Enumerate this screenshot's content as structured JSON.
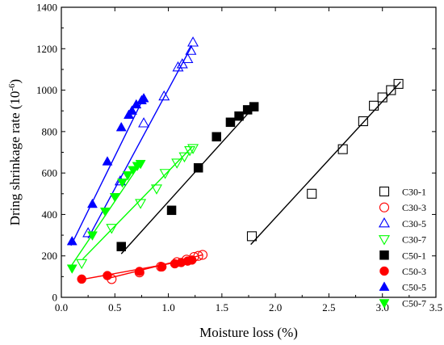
{
  "chart_data": {
    "type": "scatter",
    "title": "",
    "xlabel": "Moisture loss (%)",
    "ylabel": "Dring shrinkage rate (10",
    "ylabel_exp": "-6",
    "ylabel_close": ")",
    "xlim": [
      0.0,
      3.5
    ],
    "ylim": [
      0,
      1400
    ],
    "xticks": [
      0.0,
      0.5,
      1.0,
      1.5,
      2.0,
      2.5,
      3.0,
      3.5
    ],
    "xtick_labels": [
      "0.0",
      "0.5",
      "1.0",
      "1.5",
      "2.0",
      "2.5",
      "3.0",
      "3.5"
    ],
    "yticks": [
      0,
      200,
      400,
      600,
      800,
      1000,
      1200,
      1400
    ],
    "ytick_labels": [
      "0",
      "200",
      "400",
      "600",
      "800",
      "1000",
      "1200",
      "1400"
    ],
    "grid": false,
    "legend_position": "bottom-right",
    "series": [
      {
        "name": "C30-1",
        "marker": "square",
        "filled": false,
        "color": "#000000",
        "points": [
          [
            1.78,
            295
          ],
          [
            2.34,
            500
          ],
          [
            2.63,
            715
          ],
          [
            2.82,
            850
          ],
          [
            2.92,
            925
          ],
          [
            3.0,
            965
          ],
          [
            3.08,
            1000
          ],
          [
            3.15,
            1030
          ]
        ],
        "fit": [
          [
            1.77,
            255
          ],
          [
            3.17,
            1040
          ]
        ]
      },
      {
        "name": "C30-3",
        "marker": "circle",
        "filled": false,
        "color": "#ff0000",
        "points": [
          [
            0.47,
            88
          ],
          [
            0.73,
            120
          ],
          [
            0.93,
            148
          ],
          [
            1.08,
            170
          ],
          [
            1.17,
            182
          ],
          [
            1.24,
            195
          ],
          [
            1.28,
            200
          ],
          [
            1.32,
            205
          ]
        ],
        "fit": [
          [
            0.44,
            92
          ],
          [
            1.32,
            205
          ]
        ]
      },
      {
        "name": "C30-5",
        "marker": "triangle-up",
        "filled": false,
        "color": "#0000ff",
        "points": [
          [
            0.25,
            310
          ],
          [
            0.55,
            560
          ],
          [
            0.77,
            840
          ],
          [
            0.96,
            970
          ],
          [
            1.09,
            1110
          ],
          [
            1.13,
            1125
          ],
          [
            1.18,
            1150
          ],
          [
            1.21,
            1190
          ],
          [
            1.23,
            1230
          ]
        ],
        "fit": [
          [
            0.25,
            285
          ],
          [
            1.22,
            1215
          ]
        ]
      },
      {
        "name": "C30-7",
        "marker": "triangle-down",
        "filled": false,
        "color": "#00ff00",
        "points": [
          [
            0.19,
            165
          ],
          [
            0.47,
            335
          ],
          [
            0.74,
            455
          ],
          [
            0.89,
            525
          ],
          [
            0.97,
            600
          ],
          [
            1.08,
            650
          ],
          [
            1.15,
            680
          ],
          [
            1.2,
            710
          ],
          [
            1.23,
            720
          ]
        ],
        "fit": [
          [
            0.2,
            185
          ],
          [
            1.22,
            725
          ]
        ]
      },
      {
        "name": "C50-1",
        "marker": "square",
        "filled": true,
        "color": "#000000",
        "points": [
          [
            0.56,
            245
          ],
          [
            1.03,
            420
          ],
          [
            1.28,
            625
          ],
          [
            1.45,
            775
          ],
          [
            1.58,
            845
          ],
          [
            1.66,
            875
          ],
          [
            1.74,
            905
          ],
          [
            1.8,
            920
          ]
        ],
        "fit": [
          [
            0.56,
            210
          ],
          [
            1.81,
            925
          ]
        ]
      },
      {
        "name": "C50-3",
        "marker": "circle",
        "filled": true,
        "color": "#ff0000",
        "points": [
          [
            0.19,
            88
          ],
          [
            0.43,
            105
          ],
          [
            0.73,
            125
          ],
          [
            0.94,
            147
          ],
          [
            1.06,
            162
          ],
          [
            1.12,
            168
          ],
          [
            1.18,
            175
          ],
          [
            1.22,
            180
          ]
        ],
        "fit": [
          [
            0.18,
            85
          ],
          [
            1.22,
            182
          ]
        ]
      },
      {
        "name": "C50-5",
        "marker": "triangle-up",
        "filled": true,
        "color": "#0000ff",
        "points": [
          [
            0.1,
            270
          ],
          [
            0.29,
            450
          ],
          [
            0.43,
            655
          ],
          [
            0.56,
            820
          ],
          [
            0.63,
            880
          ],
          [
            0.66,
            900
          ],
          [
            0.7,
            930
          ],
          [
            0.75,
            950
          ],
          [
            0.77,
            960
          ]
        ],
        "fit": [
          [
            0.09,
            250
          ],
          [
            0.78,
            975
          ]
        ]
      },
      {
        "name": "C50-7",
        "marker": "triangle-down",
        "filled": true,
        "color": "#00ff00",
        "points": [
          [
            0.1,
            140
          ],
          [
            0.29,
            300
          ],
          [
            0.41,
            415
          ],
          [
            0.5,
            485
          ],
          [
            0.57,
            555
          ],
          [
            0.62,
            590
          ],
          [
            0.67,
            615
          ],
          [
            0.71,
            635
          ],
          [
            0.74,
            645
          ]
        ],
        "fit": [
          [
            0.09,
            150
          ],
          [
            0.75,
            655
          ]
        ]
      }
    ]
  }
}
